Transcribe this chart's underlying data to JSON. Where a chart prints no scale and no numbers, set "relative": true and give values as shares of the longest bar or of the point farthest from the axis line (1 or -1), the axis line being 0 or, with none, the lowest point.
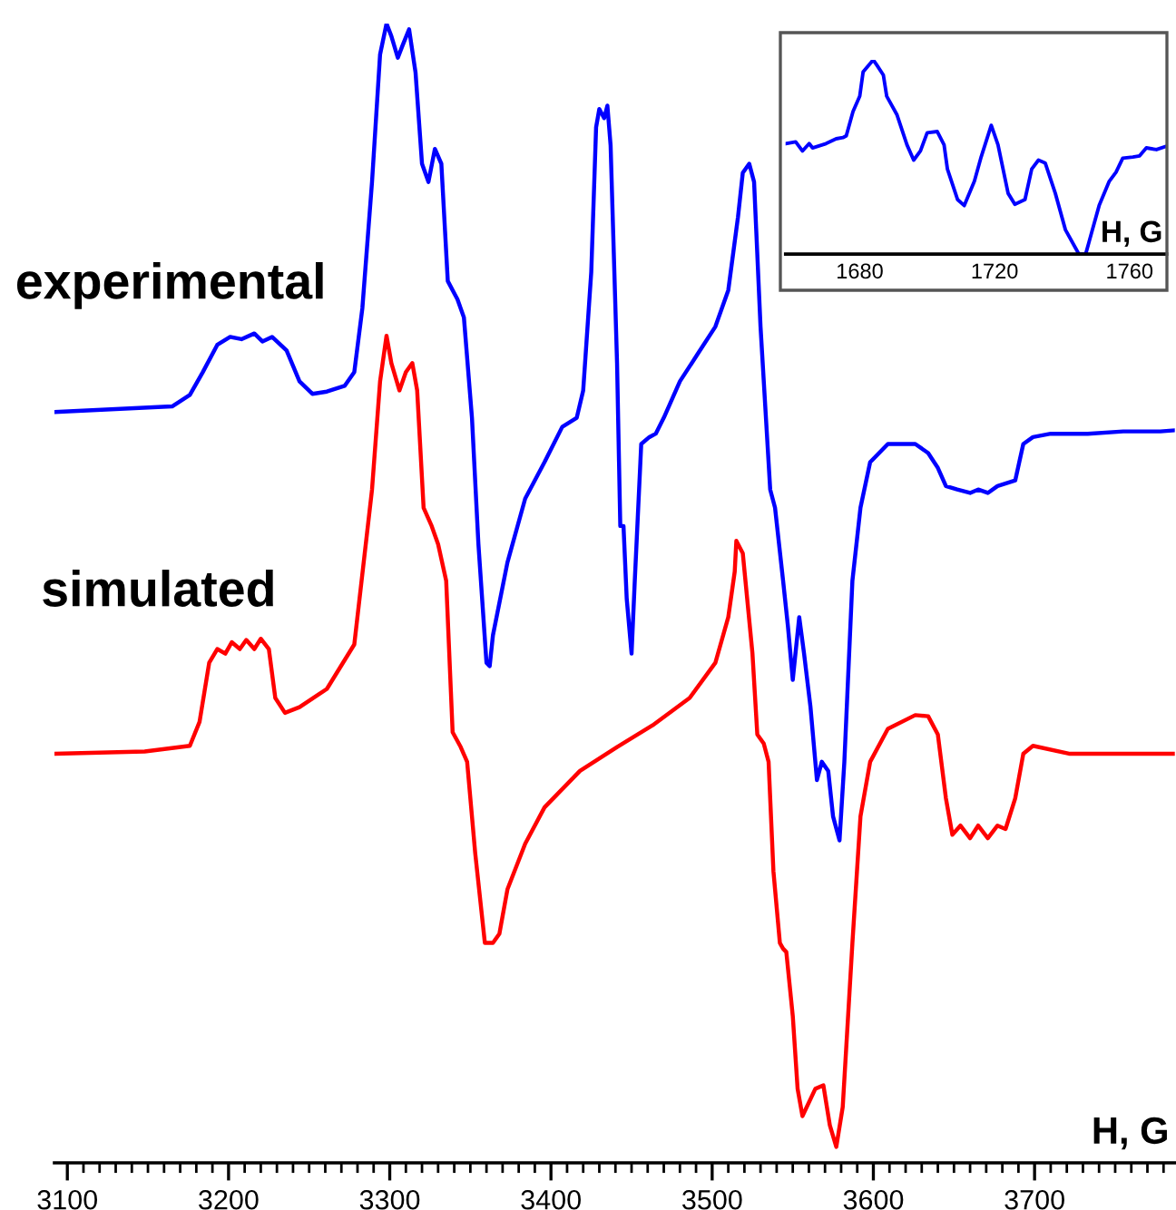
{
  "chart_data": [
    {
      "type": "line",
      "relative": true,
      "xlabel": "H, G",
      "xlim": [
        3092,
        3787
      ],
      "xticks": [
        3100,
        {
          "value": 3110,
          "label": null
        },
        {
          "value": 3120,
          "label": null
        },
        {
          "value": 3130,
          "label": null
        },
        {
          "value": 3140,
          "label": null
        },
        {
          "value": 3150,
          "label": null
        },
        {
          "value": 3160,
          "label": null
        },
        {
          "value": 3170,
          "label": null
        },
        {
          "value": 3180,
          "label": null
        },
        {
          "value": 3190,
          "label": null
        },
        3200,
        {
          "value": 3210,
          "label": null
        },
        {
          "value": 3220,
          "label": null
        },
        {
          "value": 3230,
          "label": null
        },
        {
          "value": 3240,
          "label": null
        },
        {
          "value": 3250,
          "label": null
        },
        {
          "value": 3260,
          "label": null
        },
        {
          "value": 3270,
          "label": null
        },
        {
          "value": 3280,
          "label": null
        },
        {
          "value": 3290,
          "label": null
        },
        3300,
        {
          "value": 3310,
          "label": null
        },
        {
          "value": 3320,
          "label": null
        },
        {
          "value": 3330,
          "label": null
        },
        {
          "value": 3340,
          "label": null
        },
        {
          "value": 3350,
          "label": null
        },
        {
          "value": 3360,
          "label": null
        },
        {
          "value": 3370,
          "label": null
        },
        {
          "value": 3380,
          "label": null
        },
        {
          "value": 3390,
          "label": null
        },
        3400,
        {
          "value": 3410,
          "label": null
        },
        {
          "value": 3420,
          "label": null
        },
        {
          "value": 3430,
          "label": null
        },
        {
          "value": 3440,
          "label": null
        },
        {
          "value": 3450,
          "label": null
        },
        {
          "value": 3460,
          "label": null
        },
        {
          "value": 3470,
          "label": null
        },
        {
          "value": 3480,
          "label": null
        },
        {
          "value": 3490,
          "label": null
        },
        3500,
        {
          "value": 3510,
          "label": null
        },
        {
          "value": 3520,
          "label": null
        },
        {
          "value": 3530,
          "label": null
        },
        {
          "value": 3540,
          "label": null
        },
        {
          "value": 3550,
          "label": null
        },
        {
          "value": 3560,
          "label": null
        },
        {
          "value": 3570,
          "label": null
        },
        {
          "value": 3580,
          "label": null
        },
        {
          "value": 3590,
          "label": null
        },
        3600,
        {
          "value": 3610,
          "label": null
        },
        {
          "value": 3620,
          "label": null
        },
        {
          "value": 3630,
          "label": null
        },
        {
          "value": 3640,
          "label": null
        },
        {
          "value": 3650,
          "label": null
        },
        {
          "value": 3660,
          "label": null
        },
        {
          "value": 3670,
          "label": null
        },
        {
          "value": 3680,
          "label": null
        },
        {
          "value": 3690,
          "label": null
        },
        3700,
        {
          "value": 3710,
          "label": null
        },
        {
          "value": 3720,
          "label": null
        },
        {
          "value": 3730,
          "label": null
        },
        {
          "value": 3740,
          "label": null
        },
        {
          "value": 3750,
          "label": null
        },
        {
          "value": 3760,
          "label": null
        },
        {
          "value": 3770,
          "label": null
        },
        {
          "value": 3780,
          "label": null
        }
      ],
      "series": [
        {
          "name": "experimental",
          "color": "#0000ff",
          "x": [
            3092,
            3165,
            3176,
            3184,
            3193,
            3201,
            3208,
            3216,
            3221,
            3227,
            3236,
            3244,
            3252,
            3261,
            3272,
            3278,
            3283,
            3289,
            3294,
            3298,
            3301,
            3305,
            3308,
            3312,
            3316,
            3320,
            3324,
            3328,
            3332,
            3336,
            3342,
            3346,
            3351,
            3355,
            3360,
            3362,
            3364,
            3373,
            3384,
            3396,
            3407,
            3416,
            3420,
            3425,
            3428,
            3430,
            3433,
            3435,
            3437,
            3441,
            3443,
            3445,
            3447,
            3450,
            3452,
            3456,
            3461,
            3465,
            3470,
            3480,
            3491,
            3502,
            3510,
            3516,
            3519,
            3523,
            3526,
            3530,
            3536,
            3539,
            3544,
            3547,
            3550,
            3554,
            3557,
            3561,
            3565,
            3568,
            3572,
            3575,
            3579,
            3582,
            3587,
            3592,
            3598,
            3609,
            3626,
            3634,
            3640,
            3645,
            3652,
            3660,
            3665,
            3671,
            3677,
            3688,
            3693,
            3699,
            3710,
            3733,
            3755,
            3778,
            3787
          ],
          "values": [
            0.659,
            0.664,
            0.674,
            0.694,
            0.718,
            0.725,
            0.723,
            0.728,
            0.721,
            0.725,
            0.713,
            0.686,
            0.675,
            0.677,
            0.682,
            0.694,
            0.75,
            0.861,
            0.973,
            1,
            0.989,
            0.97,
            0.981,
            0.995,
            0.957,
            0.877,
            0.861,
            0.89,
            0.877,
            0.774,
            0.758,
            0.742,
            0.654,
            0.543,
            0.439,
            0.436,
            0.463,
            0.527,
            0.583,
            0.615,
            0.646,
            0.654,
            0.678,
            0.782,
            0.909,
            0.925,
            0.917,
            0.928,
            0.893,
            0.702,
            0.559,
            0.559,
            0.495,
            0.447,
            0.511,
            0.631,
            0.637,
            0.64,
            0.654,
            0.686,
            0.71,
            0.734,
            0.766,
            0.83,
            0.869,
            0.877,
            0.861,
            0.734,
            0.591,
            0.575,
            0.511,
            0.471,
            0.424,
            0.479,
            0.447,
            0.4,
            0.336,
            0.352,
            0.344,
            0.304,
            0.283,
            0.352,
            0.511,
            0.575,
            0.615,
            0.631,
            0.631,
            0.623,
            0.61,
            0.594,
            0.591,
            0.588,
            0.591,
            0.588,
            0.594,
            0.599,
            0.631,
            0.637,
            0.64,
            0.64,
            0.642,
            0.642,
            0.643
          ]
        },
        {
          "name": "simulated",
          "color": "#ff0000",
          "x": [
            3092,
            3148,
            3176,
            3182,
            3188,
            3193,
            3198,
            3202,
            3207,
            3211,
            3216,
            3220,
            3225,
            3229,
            3235,
            3244,
            3261,
            3278,
            3289,
            3294,
            3298,
            3301,
            3306,
            3310,
            3314,
            3317,
            3321,
            3326,
            3330,
            3335,
            3339,
            3344,
            3348,
            3353,
            3359,
            3364,
            3368,
            3373,
            3384,
            3396,
            3418,
            3441,
            3463,
            3486,
            3502,
            3510,
            3514,
            3515,
            3519,
            3525,
            3528,
            3532,
            3535,
            3538,
            3542,
            3544,
            3546,
            3550,
            3553,
            3556,
            3564,
            3569,
            3573,
            3577,
            3581,
            3587,
            3592,
            3598,
            3609,
            3626,
            3634,
            3640,
            3645,
            3649,
            3654,
            3660,
            3665,
            3671,
            3677,
            3682,
            3688,
            3693,
            3699,
            3722,
            3787
          ],
          "values": [
            0.359,
            0.361,
            0.366,
            0.387,
            0.439,
            0.451,
            0.447,
            0.457,
            0.451,
            0.459,
            0.451,
            0.46,
            0.451,
            0.408,
            0.395,
            0.4,
            0.416,
            0.455,
            0.591,
            0.686,
            0.726,
            0.702,
            0.678,
            0.694,
            0.702,
            0.678,
            0.575,
            0.559,
            0.543,
            0.511,
            0.378,
            0.365,
            0.352,
            0.272,
            0.193,
            0.193,
            0.201,
            0.24,
            0.28,
            0.312,
            0.344,
            0.365,
            0.384,
            0.408,
            0.439,
            0.479,
            0.519,
            0.546,
            0.535,
            0.447,
            0.376,
            0.368,
            0.352,
            0.256,
            0.193,
            0.188,
            0.185,
            0.129,
            0.065,
            0.041,
            0.065,
            0.068,
            0.033,
            0.014,
            0.049,
            0.193,
            0.304,
            0.352,
            0.381,
            0.393,
            0.392,
            0.376,
            0.32,
            0.288,
            0.296,
            0.285,
            0.296,
            0.285,
            0.296,
            0.293,
            0.32,
            0.359,
            0.366,
            0.359,
            0.359
          ]
        }
      ]
    },
    {
      "type": "line",
      "relative": true,
      "xlabel": "H, G",
      "xlim": [
        1658,
        1771
      ],
      "xticks": [
        1680,
        1720,
        1760
      ],
      "series": [
        {
          "color": "#0000ff",
          "x": [
            1658,
            1661,
            1663,
            1665,
            1666,
            1670,
            1673,
            1675,
            1676,
            1678,
            1680,
            1681,
            1684,
            1685,
            1687,
            1688,
            1691,
            1694,
            1696,
            1698,
            1700,
            1703,
            1705,
            1706,
            1709,
            1711,
            1714,
            1716,
            1719,
            1721,
            1724,
            1726,
            1729,
            1731,
            1733,
            1735,
            1738,
            1741,
            1744,
            1745,
            1747,
            1748,
            1751,
            1754,
            1756,
            1758,
            1761,
            1763,
            1765,
            1768,
            1771
          ],
          "values": [
            0.569,
            0.578,
            0.531,
            0.569,
            0.547,
            0.569,
            0.594,
            0.6,
            0.609,
            0.734,
            0.813,
            0.938,
            1,
            0.975,
            0.922,
            0.813,
            0.719,
            0.563,
            0.484,
            0.531,
            0.625,
            0.631,
            0.563,
            0.438,
            0.281,
            0.25,
            0.375,
            0.5,
            0.663,
            0.563,
            0.313,
            0.256,
            0.281,
            0.438,
            0.484,
            0.469,
            0.313,
            0.125,
            0.031,
            0,
            0,
            0.063,
            0.25,
            0.375,
            0.422,
            0.494,
            0.5,
            0.506,
            0.547,
            0.538,
            0.556
          ]
        }
      ]
    }
  ]
}
